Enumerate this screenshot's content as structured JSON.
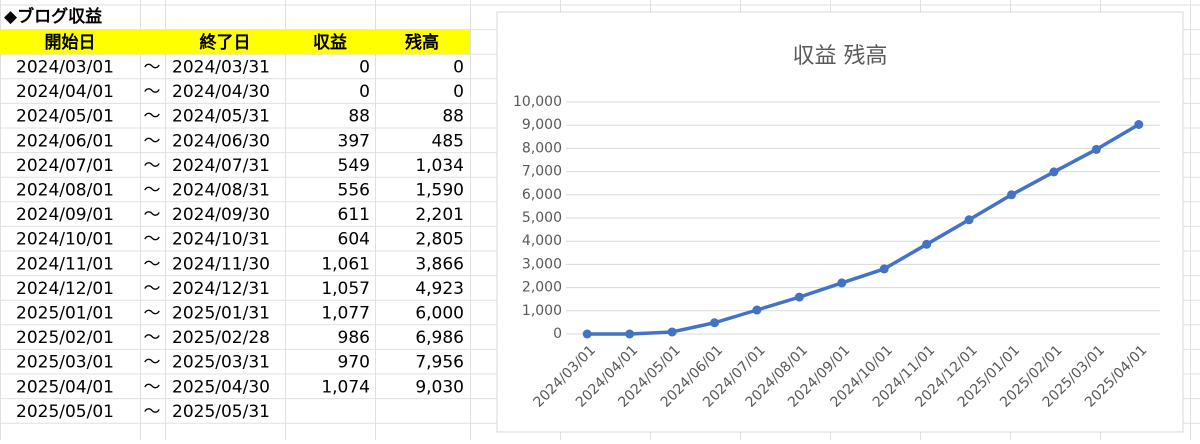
{
  "sheet": {
    "title": "◆ブログ収益",
    "headers": [
      "開始日",
      "終了日",
      "収益",
      "残高"
    ],
    "rows": [
      [
        "2024/03/01",
        "～",
        "2024/03/31",
        "0",
        "0"
      ],
      [
        "2024/04/01",
        "～",
        "2024/04/30",
        "0",
        "0"
      ],
      [
        "2024/05/01",
        "～",
        "2024/05/31",
        "88",
        "88"
      ],
      [
        "2024/06/01",
        "～",
        "2024/06/30",
        "397",
        "485"
      ],
      [
        "2024/07/01",
        "～",
        "2024/07/31",
        "549",
        "1,034"
      ],
      [
        "2024/08/01",
        "～",
        "2024/08/31",
        "556",
        "1,590"
      ],
      [
        "2024/09/01",
        "～",
        "2024/09/30",
        "611",
        "2,201"
      ],
      [
        "2024/10/01",
        "～",
        "2024/10/31",
        "604",
        "2,805"
      ],
      [
        "2024/11/01",
        "～",
        "2024/11/30",
        "1,061",
        "3,866"
      ],
      [
        "2024/12/01",
        "～",
        "2024/12/31",
        "1,057",
        "4,923"
      ],
      [
        "2025/01/01",
        "～",
        "2025/01/31",
        "1,077",
        "6,000"
      ],
      [
        "2025/02/01",
        "～",
        "2025/02/28",
        "986",
        "6,986"
      ],
      [
        "2025/03/01",
        "～",
        "2025/03/31",
        "970",
        "7,956"
      ],
      [
        "2025/04/01",
        "～",
        "2025/04/30",
        "1,074",
        "9,030"
      ],
      [
        "2025/05/01",
        "～",
        "2025/05/31"
      ]
    ]
  },
  "chart_data": {
    "type": "line",
    "title": "収益 残高",
    "categories": [
      "2024/03/01",
      "2024/04/01",
      "2024/05/01",
      "2024/06/01",
      "2024/07/01",
      "2024/08/01",
      "2024/09/01",
      "2024/10/01",
      "2024/11/01",
      "2024/12/01",
      "2025/01/01",
      "2025/02/01",
      "2025/03/01",
      "2025/04/01"
    ],
    "values": [
      0,
      0,
      88,
      485,
      1034,
      1590,
      2201,
      2805,
      3866,
      4923,
      6000,
      6986,
      7956,
      9030
    ],
    "color": "#4472c4",
    "ylim": [
      0,
      10000
    ],
    "yticks": [
      0,
      {
        "value": 1000,
        "label": "1,000"
      },
      {
        "value": 2000,
        "label": "2,000"
      },
      {
        "value": 3000,
        "label": "3,000"
      },
      {
        "value": 4000,
        "label": "4,000"
      },
      {
        "value": 5000,
        "label": "5,000"
      },
      {
        "value": 6000,
        "label": "6,000"
      },
      {
        "value": 7000,
        "label": "7,000"
      },
      {
        "value": 8000,
        "label": "8,000"
      },
      {
        "value": 9000,
        "label": "9,000"
      },
      {
        "value": 10000,
        "label": "10,000"
      }
    ],
    "grid": true
  }
}
